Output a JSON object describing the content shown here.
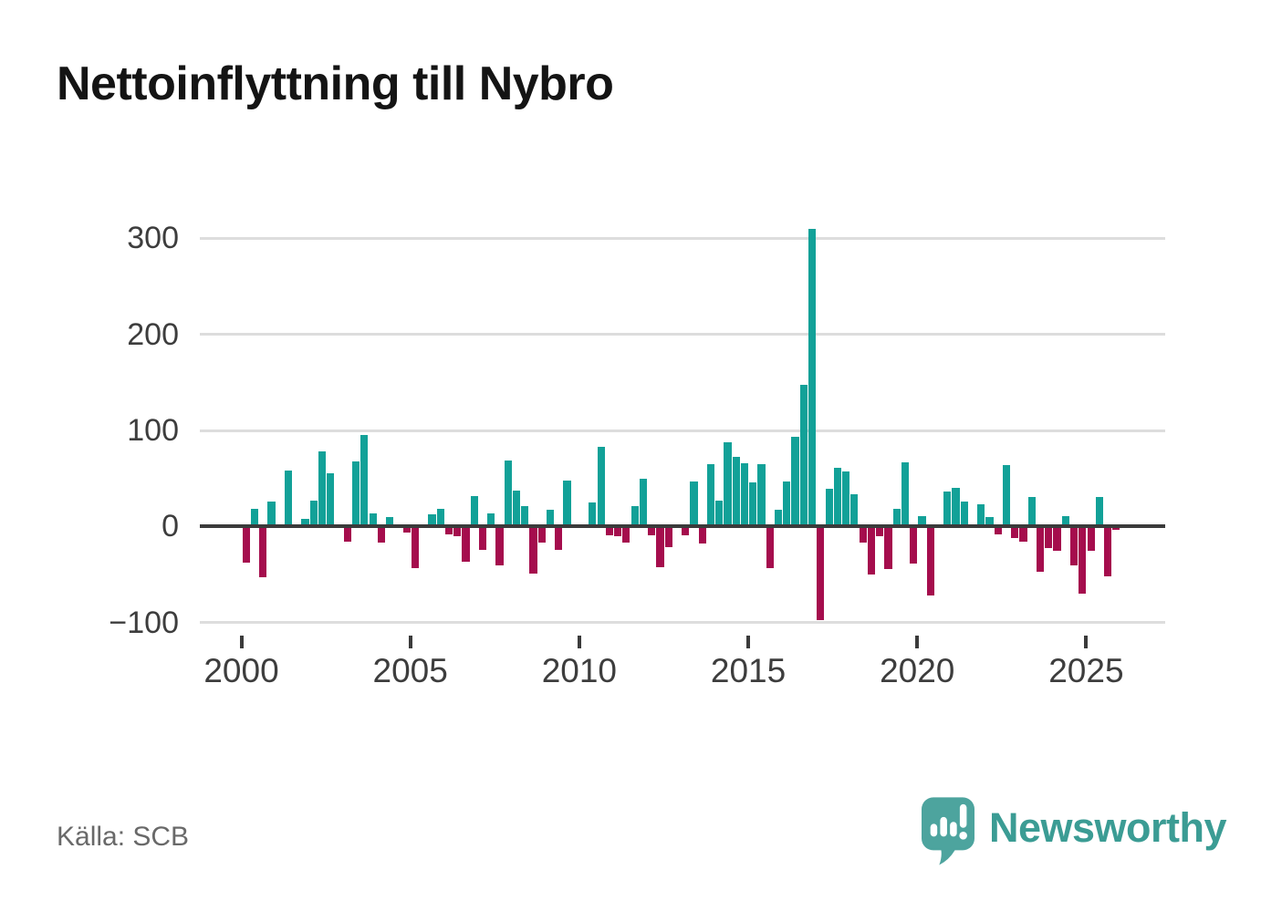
{
  "header": {
    "title": "Nettoinflyttning till Nybro"
  },
  "footer": {
    "source": "Källa: SCB",
    "brand": "Newsworthy"
  },
  "colors": {
    "positive": "#12a198",
    "negative": "#a50d4d",
    "axis": "#3b3b3b",
    "gridline": "#dddddd",
    "tick_text": "#3d3d3d",
    "muted_text": "#696969",
    "brand_text": "#3b9c94",
    "brand_mark": "#4da49e"
  },
  "chart_data": {
    "type": "bar",
    "title": "Nettoinflyttning till Nybro",
    "frequency": "quarterly",
    "start_year": 2000,
    "grid": "horizontal",
    "ylim": [
      -110,
      320
    ],
    "y_ticks": [
      {
        "value": 300,
        "label": "300"
      },
      {
        "value": 200,
        "label": "200"
      },
      {
        "value": 100,
        "label": "100"
      },
      {
        "value": 0,
        "label": "0"
      },
      {
        "value": -100,
        "label": "−100"
      }
    ],
    "x_ticks": [
      {
        "year": 2000,
        "label": "2000"
      },
      {
        "year": 2005,
        "label": "2005"
      },
      {
        "year": 2010,
        "label": "2010"
      },
      {
        "year": 2015,
        "label": "2015"
      },
      {
        "year": 2020,
        "label": "2020"
      },
      {
        "year": 2025,
        "label": "2025"
      }
    ],
    "values_by_year": [
      {
        "year": 2000,
        "q": [
          -38,
          18,
          -53,
          26
        ]
      },
      {
        "year": 2001,
        "q": [
          0,
          58,
          0,
          8
        ]
      },
      {
        "year": 2002,
        "q": [
          27,
          78,
          55,
          2
        ]
      },
      {
        "year": 2003,
        "q": [
          -16,
          68,
          95,
          14
        ]
      },
      {
        "year": 2004,
        "q": [
          -17,
          10,
          0,
          -6
        ]
      },
      {
        "year": 2005,
        "q": [
          -43,
          0,
          13,
          18
        ]
      },
      {
        "year": 2006,
        "q": [
          -8,
          -10,
          -37,
          32
        ]
      },
      {
        "year": 2007,
        "q": [
          -24,
          14,
          -40,
          69
        ]
      },
      {
        "year": 2008,
        "q": [
          37,
          21,
          -49,
          -17
        ]
      },
      {
        "year": 2009,
        "q": [
          17,
          -24,
          48,
          -2
        ]
      },
      {
        "year": 2010,
        "q": [
          0,
          25,
          83,
          -9
        ]
      },
      {
        "year": 2011,
        "q": [
          -10,
          -17,
          21,
          50
        ]
      },
      {
        "year": 2012,
        "q": [
          -9,
          -42,
          -21,
          2
        ]
      },
      {
        "year": 2013,
        "q": [
          -9,
          47,
          -18,
          65
        ]
      },
      {
        "year": 2014,
        "q": [
          27,
          88,
          73,
          66
        ]
      },
      {
        "year": 2015,
        "q": [
          46,
          65,
          -43,
          17
        ]
      },
      {
        "year": 2016,
        "q": [
          47,
          93,
          148,
          310
        ]
      },
      {
        "year": 2017,
        "q": [
          -97,
          39,
          61,
          57
        ]
      },
      {
        "year": 2018,
        "q": [
          34,
          -17,
          -50,
          -10
        ]
      },
      {
        "year": 2019,
        "q": [
          -44,
          18,
          67,
          -39
        ]
      },
      {
        "year": 2020,
        "q": [
          11,
          -72,
          0,
          36
        ]
      },
      {
        "year": 2021,
        "q": [
          40,
          26,
          0,
          23
        ]
      },
      {
        "year": 2022,
        "q": [
          10,
          -8,
          64,
          -12
        ]
      },
      {
        "year": 2023,
        "q": [
          -16,
          31,
          -47,
          -22
        ]
      },
      {
        "year": 2024,
        "q": [
          -25,
          11,
          -40,
          -70
        ]
      },
      {
        "year": 2025,
        "q": [
          -25,
          31,
          -52,
          -3
        ]
      }
    ]
  }
}
